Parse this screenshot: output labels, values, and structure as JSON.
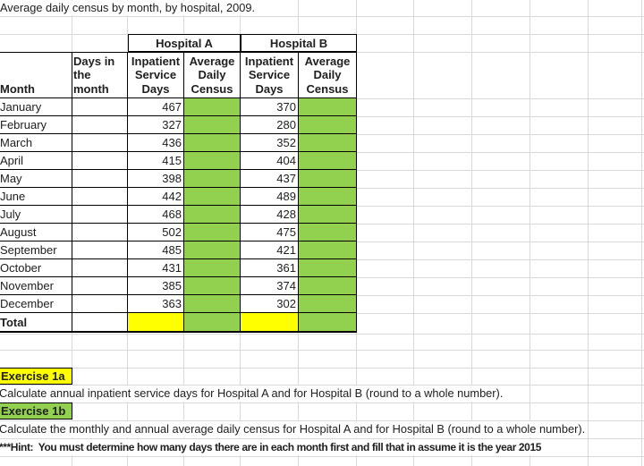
{
  "title": "Average daily census by month, by hospital, 2009.",
  "table": {
    "group_headers": [
      "Hospital A",
      "Hospital B"
    ],
    "col_headers": {
      "month": "Month",
      "days": "Days in the month",
      "isd": "Inpatient Service Days",
      "adc": "Average Daily Census"
    },
    "rows": [
      {
        "month": "January",
        "isd_a": 467,
        "adc_a": "",
        "isd_b": 370,
        "adc_b": "",
        "days": ""
      },
      {
        "month": "February",
        "isd_a": 327,
        "adc_a": "",
        "isd_b": 280,
        "adc_b": "",
        "days": ""
      },
      {
        "month": "March",
        "isd_a": 436,
        "adc_a": "",
        "isd_b": 352,
        "adc_b": "",
        "days": ""
      },
      {
        "month": "April",
        "isd_a": 415,
        "adc_a": "",
        "isd_b": 404,
        "adc_b": "",
        "days": ""
      },
      {
        "month": "May",
        "isd_a": 398,
        "adc_a": "",
        "isd_b": 437,
        "adc_b": "",
        "days": ""
      },
      {
        "month": "June",
        "isd_a": 442,
        "adc_a": "",
        "isd_b": 489,
        "adc_b": "",
        "days": ""
      },
      {
        "month": "July",
        "isd_a": 468,
        "adc_a": "",
        "isd_b": 428,
        "adc_b": "",
        "days": ""
      },
      {
        "month": "August",
        "isd_a": 502,
        "adc_a": "",
        "isd_b": 475,
        "adc_b": "",
        "days": ""
      },
      {
        "month": "September",
        "isd_a": 485,
        "adc_a": "",
        "isd_b": 421,
        "adc_b": "",
        "days": ""
      },
      {
        "month": "October",
        "isd_a": 431,
        "adc_a": "",
        "isd_b": 361,
        "adc_b": "",
        "days": ""
      },
      {
        "month": "November",
        "isd_a": 385,
        "adc_a": "",
        "isd_b": 374,
        "adc_b": "",
        "days": ""
      },
      {
        "month": "December",
        "isd_a": 363,
        "adc_a": "",
        "isd_b": 302,
        "adc_b": "",
        "days": ""
      }
    ],
    "total_row": {
      "label": "Total",
      "days": "",
      "isd_a": "",
      "adc_a": "",
      "isd_b": "",
      "adc_b": ""
    }
  },
  "exercises": {
    "ex1a_label": "Exercise 1a",
    "ex1a_text": "Calculate annual inpatient service days for Hospital A and for Hospital B (round to a whole number).",
    "ex1b_label": "Exercise 1b",
    "ex1b_text": "Calculate the monthly and annual average daily census for Hospital A and for Hospital B (round to a whole number).",
    "hint_text": "***Hint:  You must determine how many days there are in each month first and fill that in assume it is the year 2015"
  },
  "colors": {
    "fill_green": "#92D050",
    "fill_yellow": "#FFFF00",
    "gridline": "#d9d9d9",
    "border": "#000000"
  }
}
